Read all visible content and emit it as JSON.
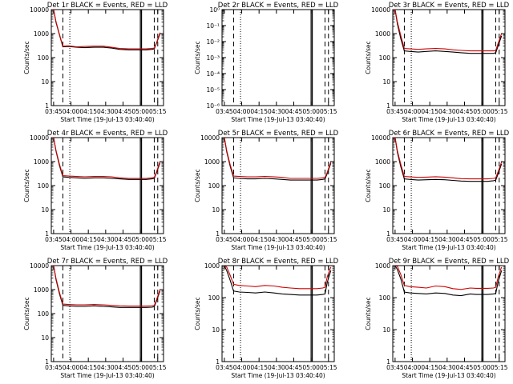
{
  "chart_data": [
    {
      "type": "line",
      "title": "Det 1r BLACK = Events, RED = LLD",
      "xlabel": "Start Time (19-Jul-13 03:40:40)",
      "ylabel": "Counts/sec",
      "y_scale": "log",
      "ylim": [
        1,
        10000
      ],
      "y_ticks": [
        "1",
        "10",
        "100",
        "1000",
        "10000"
      ],
      "x_ticks": [
        "03:45",
        "04:00",
        "04:15",
        "04:30",
        "04:45",
        "05:00",
        "05:15"
      ],
      "series": [
        {
          "color": "#000000",
          "x": [
            "03:45",
            "03:47",
            "03:50",
            "03:53",
            "03:58",
            "04:05",
            "04:12",
            "04:20",
            "04:28",
            "04:35",
            "04:42",
            "04:50",
            "04:55",
            "05:00",
            "05:05",
            "05:10",
            "05:12",
            "05:14",
            "05:17"
          ],
          "y": [
            10000,
            3000,
            900,
            280,
            290,
            270,
            260,
            270,
            270,
            250,
            220,
            210,
            210,
            210,
            210,
            220,
            230,
            400,
            1000
          ]
        },
        {
          "color": "#cc0000",
          "x": [
            "03:45",
            "03:47",
            "03:50",
            "03:53",
            "03:58",
            "04:05",
            "04:12",
            "04:20",
            "04:28",
            "04:35",
            "04:42",
            "04:50",
            "04:55",
            "05:00",
            "05:05",
            "05:10",
            "05:12",
            "05:14",
            "05:17"
          ],
          "y": [
            10000,
            3200,
            950,
            300,
            310,
            280,
            290,
            300,
            300,
            270,
            240,
            230,
            230,
            230,
            230,
            240,
            250,
            420,
            1100
          ]
        }
      ]
    },
    {
      "type": "line",
      "title": "Det 2r BLACK = Events, RED = LLD",
      "xlabel": "Start Time (19-Jul-13 03:40:40)",
      "ylabel": "Counts/sec",
      "y_scale": "log",
      "ylim": [
        1e-06,
        1
      ],
      "y_ticks": [
        "10⁻⁶",
        "10⁻⁵",
        "10⁻⁴",
        "10⁻³",
        "10⁻²",
        "10⁻¹",
        "10⁰"
      ],
      "x_ticks": [
        "03:45",
        "04:00",
        "04:15",
        "04:30",
        "04:45",
        "05:00",
        "05:15"
      ],
      "series": []
    },
    {
      "type": "line",
      "title": "Det 3r BLACK = Events, RED = LLD",
      "xlabel": "Start Time (19-Jul-13 03:40:40)",
      "ylabel": "Counts/sec",
      "y_scale": "log",
      "ylim": [
        1,
        10000
      ],
      "y_ticks": [
        "1",
        "10",
        "100",
        "1000",
        "10000"
      ],
      "x_ticks": [
        "03:45",
        "04:00",
        "04:15",
        "04:30",
        "04:45",
        "05:00",
        "05:15"
      ],
      "series": [
        {
          "color": "#000000",
          "x": [
            "03:45",
            "03:47",
            "03:50",
            "03:53",
            "03:58",
            "04:05",
            "04:12",
            "04:20",
            "04:28",
            "04:35",
            "04:42",
            "04:50",
            "04:55",
            "05:00",
            "05:05",
            "05:10",
            "05:12",
            "05:14",
            "05:17"
          ],
          "y": [
            10000,
            2500,
            600,
            190,
            180,
            170,
            180,
            190,
            180,
            170,
            160,
            150,
            150,
            150,
            150,
            150,
            160,
            300,
            800
          ]
        },
        {
          "color": "#cc0000",
          "x": [
            "03:45",
            "03:47",
            "03:50",
            "03:53",
            "03:58",
            "04:05",
            "04:12",
            "04:20",
            "04:28",
            "04:35",
            "04:42",
            "04:50",
            "04:55",
            "05:00",
            "05:05",
            "05:10",
            "05:12",
            "05:14",
            "05:17"
          ],
          "y": [
            10000,
            3000,
            800,
            240,
            230,
            220,
            230,
            240,
            230,
            210,
            200,
            190,
            190,
            190,
            190,
            190,
            200,
            380,
            1000
          ]
        }
      ]
    },
    {
      "type": "line",
      "title": "Det 4r BLACK = Events, RED = LLD",
      "xlabel": "Start Time (19-Jul-13 03:40:40)",
      "ylabel": "Counts/sec",
      "y_scale": "log",
      "ylim": [
        1,
        10000
      ],
      "y_ticks": [
        "1",
        "10",
        "100",
        "1000",
        "10000"
      ],
      "x_ticks": [
        "03:45",
        "04:00",
        "04:15",
        "04:30",
        "04:45",
        "05:00",
        "05:15"
      ],
      "series": [
        {
          "color": "#000000",
          "x": [
            "03:45",
            "03:47",
            "03:50",
            "03:53",
            "03:58",
            "04:05",
            "04:12",
            "04:20",
            "04:28",
            "04:35",
            "04:42",
            "04:50",
            "04:55",
            "05:00",
            "05:05",
            "05:10",
            "05:12",
            "05:14",
            "05:17"
          ],
          "y": [
            10000,
            2800,
            700,
            230,
            220,
            210,
            200,
            210,
            210,
            200,
            190,
            180,
            180,
            180,
            180,
            190,
            200,
            350,
            900
          ]
        },
        {
          "color": "#cc0000",
          "x": [
            "03:45",
            "03:47",
            "03:50",
            "03:53",
            "03:58",
            "04:05",
            "04:12",
            "04:20",
            "04:28",
            "04:35",
            "04:42",
            "04:50",
            "04:55",
            "05:00",
            "05:05",
            "05:10",
            "05:12",
            "05:14",
            "05:17"
          ],
          "y": [
            10000,
            3000,
            800,
            260,
            250,
            240,
            230,
            240,
            240,
            230,
            210,
            200,
            200,
            200,
            200,
            210,
            220,
            380,
            1000
          ]
        }
      ]
    },
    {
      "type": "line",
      "title": "Det 5r BLACK = Events, RED = LLD",
      "xlabel": "Start Time (19-Jul-13 03:40:40)",
      "ylabel": "Counts/sec",
      "y_scale": "log",
      "ylim": [
        1,
        10000
      ],
      "y_ticks": [
        "1",
        "10",
        "100",
        "1000",
        "10000"
      ],
      "x_ticks": [
        "03:45",
        "04:00",
        "04:15",
        "04:30",
        "04:45",
        "05:00",
        "05:15"
      ],
      "series": [
        {
          "color": "#000000",
          "x": [
            "03:45",
            "03:47",
            "03:50",
            "03:53",
            "03:58",
            "04:05",
            "04:12",
            "04:20",
            "04:28",
            "04:35",
            "04:42",
            "04:50",
            "04:55",
            "05:00",
            "05:05",
            "05:10",
            "05:12",
            "05:14",
            "05:17"
          ],
          "y": [
            10000,
            2600,
            650,
            210,
            200,
            190,
            190,
            200,
            190,
            180,
            170,
            170,
            170,
            170,
            170,
            180,
            190,
            320,
            850
          ]
        },
        {
          "color": "#cc0000",
          "x": [
            "03:45",
            "03:47",
            "03:50",
            "03:53",
            "03:58",
            "04:05",
            "04:12",
            "04:20",
            "04:28",
            "04:35",
            "04:42",
            "04:50",
            "04:55",
            "05:00",
            "05:05",
            "05:10",
            "05:12",
            "05:14",
            "05:17"
          ],
          "y": [
            10000,
            2900,
            750,
            250,
            240,
            230,
            230,
            240,
            230,
            220,
            200,
            200,
            200,
            200,
            200,
            210,
            220,
            360,
            950
          ]
        }
      ]
    },
    {
      "type": "line",
      "title": "Det 6r BLACK = Events, RED = LLD",
      "xlabel": "Start Time (19-Jul-13 03:40:40)",
      "ylabel": "Counts/sec",
      "y_scale": "log",
      "ylim": [
        1,
        10000
      ],
      "y_ticks": [
        "1",
        "10",
        "100",
        "1000",
        "10000"
      ],
      "x_ticks": [
        "03:45",
        "04:00",
        "04:15",
        "04:30",
        "04:45",
        "05:00",
        "05:15"
      ],
      "series": [
        {
          "color": "#000000",
          "x": [
            "03:45",
            "03:47",
            "03:50",
            "03:53",
            "03:58",
            "04:05",
            "04:12",
            "04:20",
            "04:28",
            "04:35",
            "04:42",
            "04:50",
            "04:55",
            "05:00",
            "05:05",
            "05:10",
            "05:12",
            "05:14",
            "05:17"
          ],
          "y": [
            10000,
            2400,
            600,
            190,
            180,
            170,
            175,
            180,
            175,
            165,
            155,
            150,
            150,
            150,
            150,
            160,
            170,
            300,
            800
          ]
        },
        {
          "color": "#cc0000",
          "x": [
            "03:45",
            "03:47",
            "03:50",
            "03:53",
            "03:58",
            "04:05",
            "04:12",
            "04:20",
            "04:28",
            "04:35",
            "04:42",
            "04:50",
            "04:55",
            "05:00",
            "05:05",
            "05:10",
            "05:12",
            "05:14",
            "05:17"
          ],
          "y": [
            10000,
            2800,
            750,
            240,
            230,
            220,
            225,
            235,
            225,
            210,
            195,
            190,
            190,
            190,
            190,
            200,
            210,
            370,
            950
          ]
        }
      ]
    },
    {
      "type": "line",
      "title": "Det 7r BLACK = Events, RED = LLD",
      "xlabel": "Start Time (19-Jul-13 03:40:40)",
      "ylabel": "Counts/sec",
      "y_scale": "log",
      "ylim": [
        1,
        10000
      ],
      "y_ticks": [
        "1",
        "10",
        "100",
        "1000",
        "10000"
      ],
      "x_ticks": [
        "03:45",
        "04:00",
        "04:15",
        "04:30",
        "04:45",
        "05:00",
        "05:15"
      ],
      "series": [
        {
          "color": "#000000",
          "x": [
            "03:45",
            "03:47",
            "03:50",
            "03:53",
            "03:58",
            "04:05",
            "04:12",
            "04:20",
            "04:28",
            "04:35",
            "04:42",
            "04:50",
            "04:55",
            "05:00",
            "05:05",
            "05:10",
            "05:12",
            "05:14",
            "05:17"
          ],
          "y": [
            10000,
            2700,
            680,
            220,
            210,
            200,
            200,
            210,
            200,
            190,
            180,
            180,
            180,
            180,
            180,
            185,
            195,
            340,
            900
          ]
        },
        {
          "color": "#cc0000",
          "x": [
            "03:45",
            "03:47",
            "03:50",
            "03:53",
            "03:58",
            "04:05",
            "04:12",
            "04:20",
            "04:28",
            "04:35",
            "04:42",
            "04:50",
            "04:55",
            "05:00",
            "05:05",
            "05:10",
            "05:12",
            "05:14",
            "05:17"
          ],
          "y": [
            10000,
            3000,
            780,
            250,
            240,
            230,
            230,
            240,
            230,
            220,
            210,
            205,
            205,
            205,
            205,
            210,
            220,
            380,
            1000
          ]
        }
      ]
    },
    {
      "type": "line",
      "title": "Det 8r BLACK = Events, RED = LLD",
      "xlabel": "Start Time (19-Jul-13 03:40:40)",
      "ylabel": "Counts/sec",
      "y_scale": "log",
      "ylim": [
        1,
        1000
      ],
      "y_ticks": [
        "1",
        "10",
        "100",
        "1000"
      ],
      "x_ticks": [
        "03:45",
        "04:00",
        "04:15",
        "04:30",
        "04:45",
        "05:00",
        "05:15"
      ],
      "series": [
        {
          "color": "#000000",
          "x": [
            "03:45",
            "03:47",
            "03:50",
            "03:53",
            "03:58",
            "04:05",
            "04:12",
            "04:20",
            "04:28",
            "04:35",
            "04:42",
            "04:50",
            "04:55",
            "05:00",
            "05:05",
            "05:10",
            "05:12",
            "05:14",
            "05:17"
          ],
          "y": [
            1000,
            700,
            350,
            160,
            150,
            145,
            140,
            150,
            140,
            130,
            125,
            120,
            120,
            120,
            120,
            125,
            130,
            300,
            700
          ]
        },
        {
          "color": "#cc0000",
          "x": [
            "03:45",
            "03:47",
            "03:50",
            "03:53",
            "03:58",
            "04:05",
            "04:12",
            "04:20",
            "04:28",
            "04:35",
            "04:42",
            "04:50",
            "04:55",
            "05:00",
            "05:05",
            "05:10",
            "05:12",
            "05:14",
            "05:17"
          ],
          "y": [
            1000,
            900,
            500,
            260,
            240,
            230,
            220,
            240,
            230,
            210,
            200,
            190,
            190,
            190,
            190,
            200,
            210,
            450,
            900
          ]
        }
      ]
    },
    {
      "type": "line",
      "title": "Det 9r BLACK = Events, RED = LLD",
      "xlabel": "Start Time (19-Jul-13 03:40:40)",
      "ylabel": "Counts/sec",
      "y_scale": "log",
      "ylim": [
        1,
        1000
      ],
      "y_ticks": [
        "1",
        "10",
        "100",
        "1000"
      ],
      "x_ticks": [
        "03:45",
        "04:00",
        "04:15",
        "04:30",
        "04:45",
        "05:00",
        "05:15"
      ],
      "series": [
        {
          "color": "#000000",
          "x": [
            "03:45",
            "03:47",
            "03:50",
            "03:53",
            "03:58",
            "04:05",
            "04:12",
            "04:20",
            "04:28",
            "04:35",
            "04:42",
            "04:50",
            "04:55",
            "05:00",
            "05:05",
            "05:10",
            "05:12",
            "05:14",
            "05:17"
          ],
          "y": [
            1000,
            750,
            380,
            150,
            140,
            135,
            130,
            140,
            135,
            120,
            115,
            130,
            125,
            125,
            125,
            130,
            135,
            300,
            700
          ]
        },
        {
          "color": "#cc0000",
          "x": [
            "03:45",
            "03:47",
            "03:50",
            "03:53",
            "03:58",
            "04:05",
            "04:12",
            "04:20",
            "04:28",
            "04:35",
            "04:42",
            "04:50",
            "04:55",
            "05:00",
            "05:05",
            "05:10",
            "05:12",
            "05:14",
            "05:17"
          ],
          "y": [
            1000,
            950,
            520,
            240,
            220,
            210,
            200,
            230,
            220,
            190,
            180,
            200,
            195,
            195,
            195,
            200,
            210,
            420,
            900
          ]
        }
      ]
    }
  ]
}
